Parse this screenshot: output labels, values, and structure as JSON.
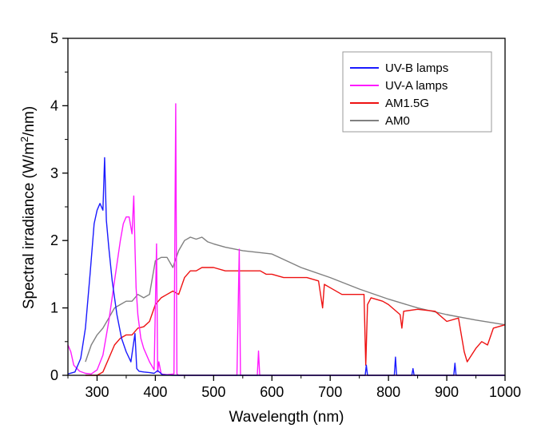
{
  "chart_data": {
    "type": "line",
    "title": "",
    "xlabel": "Wavelength (nm)",
    "ylabel_main": "Spectral irradiance (W/m",
    "ylabel_sup": "2",
    "ylabel_tail": "/nm)",
    "xlim": [
      250,
      1000
    ],
    "ylim": [
      0,
      5
    ],
    "x_ticks": [
      300,
      400,
      500,
      600,
      700,
      800,
      900,
      1000
    ],
    "x_tick_labels": [
      "300",
      "400",
      "500",
      "600",
      "700",
      "800",
      "900",
      "1000"
    ],
    "y_ticks": [
      0,
      1,
      2,
      3,
      4,
      5
    ],
    "y_tick_labels": [
      "0",
      "1",
      "2",
      "3",
      "4",
      "5"
    ],
    "legend_position": "top-right",
    "series": [
      {
        "name": "UV-B lamps",
        "color": "#1a1aff",
        "x": [
          250,
          262,
          272,
          280,
          288,
          295,
          300,
          305,
          310,
          313,
          316,
          320,
          326,
          334,
          342,
          350,
          358,
          365,
          368,
          372,
          380,
          390,
          398,
          404,
          412,
          430,
          500,
          600,
          700,
          760,
          762,
          764,
          800,
          810,
          812,
          814,
          840,
          842,
          844,
          900,
          912,
          914,
          916,
          950,
          1000
        ],
        "y": [
          0.02,
          0.05,
          0.25,
          0.7,
          1.5,
          2.25,
          2.45,
          2.55,
          2.45,
          3.23,
          2.3,
          1.9,
          1.4,
          0.9,
          0.55,
          0.35,
          0.2,
          0.62,
          0.1,
          0.06,
          0.05,
          0.04,
          0.03,
          0.07,
          0.01,
          0.0,
          0.0,
          0.0,
          0.0,
          0.0,
          0.15,
          0.0,
          0.0,
          0.0,
          0.27,
          0.0,
          0.0,
          0.1,
          0.0,
          0.0,
          0.0,
          0.18,
          0.0,
          0.0,
          0.0
        ]
      },
      {
        "name": "UV-A lamps",
        "color": "#ff1aff",
        "x": [
          250,
          255,
          260,
          270,
          280,
          290,
          300,
          310,
          320,
          330,
          340,
          345,
          350,
          355,
          360,
          363,
          365,
          367,
          370,
          375,
          380,
          390,
          398,
          402,
          404,
          406,
          410,
          420,
          432,
          435,
          437,
          440,
          460,
          540,
          544,
          546,
          548,
          560,
          575,
          577,
          579,
          600,
          700,
          800,
          900,
          1000
        ],
        "y": [
          0.45,
          0.35,
          0.15,
          0.06,
          0.03,
          0.02,
          0.08,
          0.3,
          0.8,
          1.4,
          2.0,
          2.25,
          2.35,
          2.35,
          2.1,
          2.66,
          1.9,
          1.3,
          0.9,
          0.55,
          0.4,
          0.2,
          0.08,
          1.95,
          0.05,
          0.2,
          0.02,
          0.01,
          0.02,
          4.03,
          0.02,
          0.0,
          0.0,
          0.0,
          1.87,
          0.0,
          0.0,
          0.0,
          0.0,
          0.36,
          0.0,
          0.0,
          0.0,
          0.0,
          0.0,
          0.0
        ]
      },
      {
        "name": "AM1.5G",
        "color": "#ee1111",
        "x": [
          280,
          290,
          300,
          310,
          320,
          330,
          340,
          350,
          360,
          370,
          380,
          390,
          400,
          410,
          420,
          430,
          440,
          450,
          460,
          470,
          480,
          500,
          520,
          540,
          560,
          580,
          590,
          600,
          620,
          640,
          660,
          680,
          687,
          690,
          700,
          720,
          740,
          758,
          761,
          764,
          770,
          790,
          800,
          820,
          823,
          826,
          850,
          880,
          900,
          920,
          930,
          935,
          950,
          960,
          970,
          980,
          1000
        ],
        "y": [
          0.0,
          0.0,
          0.0,
          0.05,
          0.25,
          0.45,
          0.55,
          0.6,
          0.6,
          0.7,
          0.72,
          0.8,
          1.05,
          1.15,
          1.2,
          1.25,
          1.2,
          1.45,
          1.55,
          1.55,
          1.6,
          1.6,
          1.55,
          1.55,
          1.55,
          1.55,
          1.5,
          1.5,
          1.45,
          1.45,
          1.45,
          1.4,
          1.0,
          1.35,
          1.3,
          1.2,
          1.2,
          1.2,
          0.15,
          1.05,
          1.15,
          1.1,
          1.05,
          0.9,
          0.7,
          0.95,
          0.98,
          0.95,
          0.8,
          0.85,
          0.35,
          0.2,
          0.4,
          0.5,
          0.45,
          0.7,
          0.75
        ]
      },
      {
        "name": "AM0",
        "color": "#808080",
        "x": [
          280,
          290,
          300,
          310,
          320,
          330,
          340,
          350,
          360,
          370,
          380,
          390,
          400,
          410,
          420,
          430,
          440,
          450,
          460,
          470,
          480,
          490,
          500,
          520,
          550,
          600,
          650,
          700,
          750,
          800,
          850,
          900,
          950,
          1000
        ],
        "y": [
          0.2,
          0.45,
          0.6,
          0.7,
          0.85,
          1.0,
          1.05,
          1.1,
          1.1,
          1.2,
          1.15,
          1.2,
          1.7,
          1.75,
          1.75,
          1.6,
          1.85,
          2.0,
          2.05,
          2.02,
          2.05,
          1.98,
          1.95,
          1.9,
          1.85,
          1.8,
          1.6,
          1.45,
          1.28,
          1.13,
          1.0,
          0.9,
          0.82,
          0.75
        ]
      }
    ]
  }
}
